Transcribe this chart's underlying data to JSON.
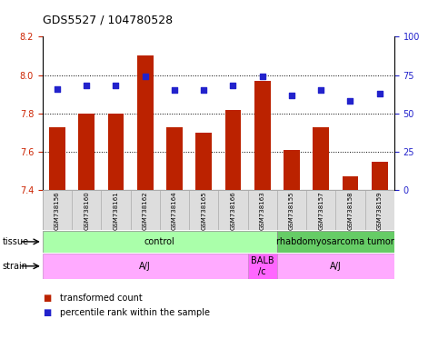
{
  "title": "GDS5527 / 104780528",
  "samples": [
    "GSM738156",
    "GSM738160",
    "GSM738161",
    "GSM738162",
    "GSM738164",
    "GSM738165",
    "GSM738166",
    "GSM738163",
    "GSM738155",
    "GSM738157",
    "GSM738158",
    "GSM738159"
  ],
  "bar_values": [
    7.73,
    7.8,
    7.8,
    8.1,
    7.73,
    7.7,
    7.82,
    7.97,
    7.61,
    7.73,
    7.47,
    7.55
  ],
  "percentile_values": [
    66,
    68,
    68,
    74,
    65,
    65,
    68,
    74,
    62,
    65,
    58,
    63
  ],
  "ylim_left": [
    7.4,
    8.2
  ],
  "ylim_right": [
    0,
    100
  ],
  "yticks_left": [
    7.4,
    7.6,
    7.8,
    8.0,
    8.2
  ],
  "yticks_right": [
    0,
    25,
    50,
    75,
    100
  ],
  "grid_ticks": [
    7.6,
    7.8,
    8.0
  ],
  "bar_color": "#bb2200",
  "dot_color": "#2222cc",
  "tissue_labels": [
    {
      "text": "control",
      "start": 0,
      "end": 7,
      "color": "#aaffaa"
    },
    {
      "text": "rhabdomyosarcoma tumor",
      "start": 8,
      "end": 11,
      "color": "#66cc66"
    }
  ],
  "strain_labels": [
    {
      "text": "A/J",
      "start": 0,
      "end": 6,
      "color": "#ffaaff"
    },
    {
      "text": "BALB\n/c",
      "start": 7,
      "end": 7,
      "color": "#ff66ff"
    },
    {
      "text": "A/J",
      "start": 8,
      "end": 11,
      "color": "#ffaaff"
    }
  ],
  "legend_items": [
    {
      "label": "transformed count",
      "color": "#bb2200"
    },
    {
      "label": "percentile rank within the sample",
      "color": "#2222cc"
    }
  ],
  "tissue_row_label": "tissue",
  "strain_row_label": "strain",
  "bar_bottom": 7.4,
  "label_color_left": "#cc2200",
  "label_color_right": "#2222cc",
  "bg_color": "#ffffff",
  "border_color": "#000000"
}
